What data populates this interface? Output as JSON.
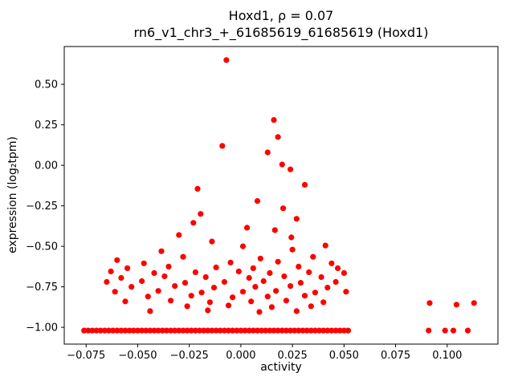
{
  "chart_data": {
    "type": "scatter",
    "title": "Hoxd1, ρ = 0.07",
    "subtitle": "rn6_v1_chr3_+_61685619_61685619 (Hoxd1)",
    "xlabel": "activity",
    "ylabel": "expression (log₂tpm)",
    "xlim": [
      -0.0856,
      0.1246
    ],
    "ylim": [
      -1.1035,
      0.7335
    ],
    "marker_color": "#ff0000",
    "grid": false,
    "legend": null,
    "x_ticks": {
      "values": [
        -0.075,
        -0.05,
        -0.025,
        0.0,
        0.025,
        0.05,
        0.075,
        0.1
      ],
      "labels": [
        "−0.075",
        "−0.050",
        "−0.025",
        "0.000",
        "0.025",
        "0.050",
        "0.075",
        "0.100"
      ]
    },
    "y_ticks": {
      "values": [
        0.5,
        0.25,
        0.0,
        -0.25,
        -0.5,
        -0.75,
        -1.0
      ],
      "labels": [
        "0.50",
        "0.25",
        "0.00",
        "−0.25",
        "−0.50",
        "−0.75",
        "−1.00"
      ]
    },
    "points": [
      [
        -0.007,
        0.65
      ],
      [
        0.016,
        0.28
      ],
      [
        0.018,
        0.175
      ],
      [
        -0.009,
        0.12
      ],
      [
        0.013,
        0.08
      ],
      [
        0.02,
        0.005
      ],
      [
        0.024,
        -0.025
      ],
      [
        0.031,
        -0.12
      ],
      [
        -0.021,
        -0.145
      ],
      [
        0.008,
        -0.22
      ],
      [
        0.0205,
        -0.265
      ],
      [
        -0.0195,
        -0.3
      ],
      [
        0.027,
        -0.33
      ],
      [
        -0.023,
        -0.355
      ],
      [
        0.003,
        -0.385
      ],
      [
        0.0165,
        -0.4
      ],
      [
        -0.03,
        -0.43
      ],
      [
        0.0245,
        -0.445
      ],
      [
        -0.014,
        -0.47
      ],
      [
        0.001,
        -0.5
      ],
      [
        0.041,
        -0.495
      ],
      [
        0.025,
        -0.52
      ],
      [
        -0.0385,
        -0.53
      ],
      [
        -0.06,
        -0.585
      ],
      [
        -0.028,
        -0.565
      ],
      [
        0.0095,
        -0.575
      ],
      [
        0.035,
        -0.565
      ],
      [
        -0.047,
        -0.605
      ],
      [
        -0.005,
        -0.6
      ],
      [
        0.018,
        -0.595
      ],
      [
        0.044,
        -0.605
      ],
      [
        -0.055,
        -0.635
      ],
      [
        -0.035,
        -0.625
      ],
      [
        -0.012,
        -0.63
      ],
      [
        0.006,
        -0.635
      ],
      [
        0.028,
        -0.625
      ],
      [
        0.047,
        -0.635
      ],
      [
        -0.063,
        -0.655
      ],
      [
        -0.042,
        -0.665
      ],
      [
        -0.022,
        -0.66
      ],
      [
        -0.001,
        -0.655
      ],
      [
        0.014,
        -0.665
      ],
      [
        0.033,
        -0.66
      ],
      [
        0.05,
        -0.665
      ],
      [
        -0.058,
        -0.695
      ],
      [
        -0.037,
        -0.685
      ],
      [
        -0.017,
        -0.69
      ],
      [
        0.004,
        -0.695
      ],
      [
        0.021,
        -0.685
      ],
      [
        0.039,
        -0.69
      ],
      [
        -0.065,
        -0.72
      ],
      [
        -0.048,
        -0.715
      ],
      [
        -0.027,
        -0.725
      ],
      [
        -0.008,
        -0.72
      ],
      [
        0.011,
        -0.715
      ],
      [
        0.029,
        -0.725
      ],
      [
        0.046,
        -0.72
      ],
      [
        -0.053,
        -0.75
      ],
      [
        -0.032,
        -0.745
      ],
      [
        -0.013,
        -0.755
      ],
      [
        0.007,
        -0.75
      ],
      [
        0.024,
        -0.745
      ],
      [
        0.042,
        -0.755
      ],
      [
        -0.061,
        -0.78
      ],
      [
        -0.04,
        -0.775
      ],
      [
        -0.019,
        -0.785
      ],
      [
        0.001,
        -0.78
      ],
      [
        0.017,
        -0.775
      ],
      [
        0.036,
        -0.785
      ],
      [
        0.051,
        -0.78
      ],
      [
        -0.045,
        -0.81
      ],
      [
        -0.024,
        -0.805
      ],
      [
        -0.004,
        -0.815
      ],
      [
        0.013,
        -0.81
      ],
      [
        0.031,
        -0.805
      ],
      [
        -0.056,
        -0.84
      ],
      [
        -0.034,
        -0.835
      ],
      [
        -0.015,
        -0.845
      ],
      [
        0.005,
        -0.84
      ],
      [
        0.022,
        -0.835
      ],
      [
        0.04,
        -0.845
      ],
      [
        -0.026,
        -0.87
      ],
      [
        -0.006,
        -0.865
      ],
      [
        0.015,
        -0.875
      ],
      [
        0.034,
        -0.87
      ],
      [
        -0.044,
        -0.9
      ],
      [
        -0.016,
        -0.895
      ],
      [
        0.009,
        -0.905
      ],
      [
        0.027,
        -0.9
      ],
      [
        0.0915,
        -0.85
      ],
      [
        0.1045,
        -0.86
      ],
      [
        0.113,
        -0.85
      ],
      [
        0.091,
        -1.02
      ],
      [
        0.099,
        -1.02
      ],
      [
        0.103,
        -1.02
      ],
      [
        0.11,
        -1.02
      ],
      [
        -0.076,
        -1.02
      ],
      [
        -0.074,
        -1.02
      ],
      [
        -0.072,
        -1.02
      ],
      [
        -0.07,
        -1.02
      ],
      [
        -0.068,
        -1.02
      ],
      [
        -0.066,
        -1.02
      ],
      [
        -0.064,
        -1.02
      ],
      [
        -0.062,
        -1.02
      ],
      [
        -0.06,
        -1.02
      ],
      [
        -0.058,
        -1.02
      ],
      [
        -0.056,
        -1.02
      ],
      [
        -0.054,
        -1.02
      ],
      [
        -0.052,
        -1.02
      ],
      [
        -0.05,
        -1.02
      ],
      [
        -0.048,
        -1.02
      ],
      [
        -0.046,
        -1.02
      ],
      [
        -0.044,
        -1.02
      ],
      [
        -0.042,
        -1.02
      ],
      [
        -0.04,
        -1.02
      ],
      [
        -0.038,
        -1.02
      ],
      [
        -0.036,
        -1.02
      ],
      [
        -0.034,
        -1.02
      ],
      [
        -0.032,
        -1.02
      ],
      [
        -0.03,
        -1.02
      ],
      [
        -0.028,
        -1.02
      ],
      [
        -0.026,
        -1.02
      ],
      [
        -0.024,
        -1.02
      ],
      [
        -0.022,
        -1.02
      ],
      [
        -0.02,
        -1.02
      ],
      [
        -0.018,
        -1.02
      ],
      [
        -0.016,
        -1.02
      ],
      [
        -0.014,
        -1.02
      ],
      [
        -0.012,
        -1.02
      ],
      [
        -0.01,
        -1.02
      ],
      [
        -0.008,
        -1.02
      ],
      [
        -0.006,
        -1.02
      ],
      [
        -0.004,
        -1.02
      ],
      [
        -0.002,
        -1.02
      ],
      [
        0.0,
        -1.02
      ],
      [
        0.002,
        -1.02
      ],
      [
        0.004,
        -1.02
      ],
      [
        0.006,
        -1.02
      ],
      [
        0.008,
        -1.02
      ],
      [
        0.01,
        -1.02
      ],
      [
        0.012,
        -1.02
      ],
      [
        0.014,
        -1.02
      ],
      [
        0.016,
        -1.02
      ],
      [
        0.018,
        -1.02
      ],
      [
        0.02,
        -1.02
      ],
      [
        0.022,
        -1.02
      ],
      [
        0.024,
        -1.02
      ],
      [
        0.026,
        -1.02
      ],
      [
        0.028,
        -1.02
      ],
      [
        0.03,
        -1.02
      ],
      [
        0.032,
        -1.02
      ],
      [
        0.034,
        -1.02
      ],
      [
        0.036,
        -1.02
      ],
      [
        0.038,
        -1.02
      ],
      [
        0.04,
        -1.02
      ],
      [
        0.042,
        -1.02
      ],
      [
        0.044,
        -1.02
      ],
      [
        0.046,
        -1.02
      ],
      [
        0.048,
        -1.02
      ],
      [
        0.05,
        -1.02
      ],
      [
        0.052,
        -1.02
      ]
    ]
  }
}
